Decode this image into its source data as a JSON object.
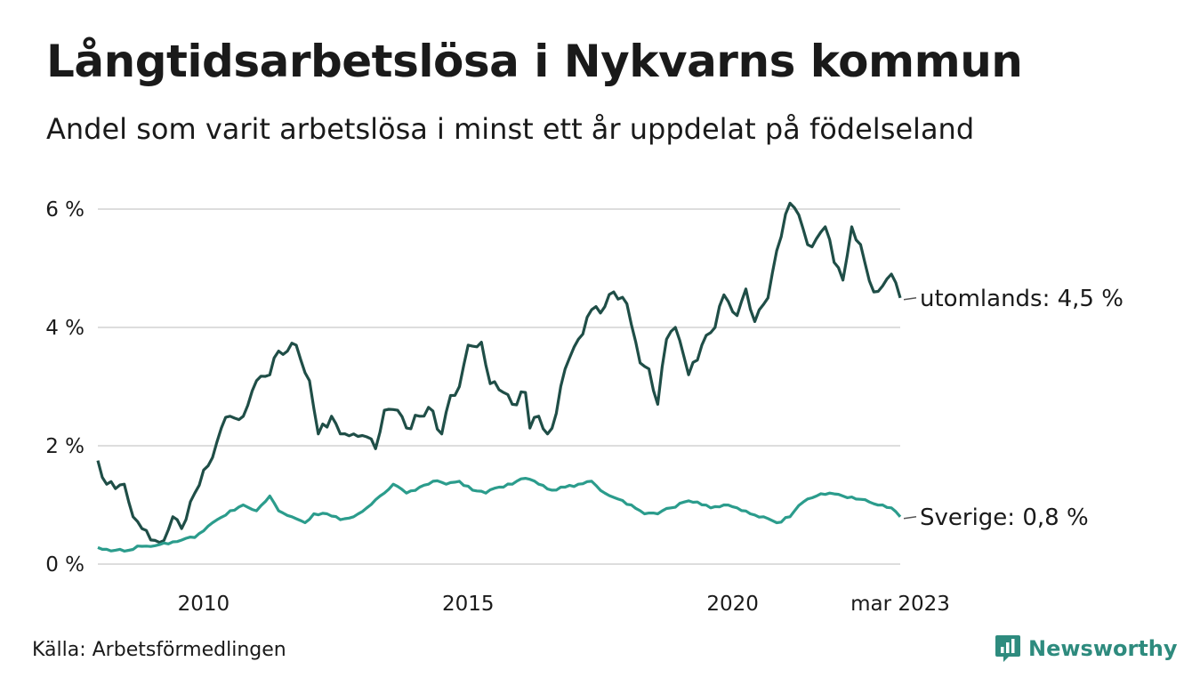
{
  "title": "Långtidsarbetslösa i Nykvarns kommun",
  "subtitle": "Andel som varit arbetslösa i minst ett år uppdelat på födelseland",
  "source": "Källa: Arbetsförmedlingen",
  "brand": {
    "name": "Newsworthy",
    "icon": "newsworthy-logo-icon"
  },
  "colors": {
    "utomlands": "#1f4e47",
    "sverige": "#2b9c8c",
    "grid": "#dddddd",
    "text": "#1a1a1a"
  },
  "chart_data": {
    "type": "line",
    "title": "Långtidsarbetslösa i Nykvarns kommun",
    "subtitle": "Andel som varit arbetslösa i minst ett år uppdelat på födelseland",
    "x_start": "2008-01",
    "x_end": "2023-03",
    "x_ticks": [
      {
        "label": "2010",
        "x": "2010-01"
      },
      {
        "label": "2015",
        "x": "2015-01"
      },
      {
        "label": "2020",
        "x": "2020-01"
      },
      {
        "label": "mar 2023",
        "x": "2023-03"
      }
    ],
    "y_ticks": [
      {
        "label": "0 %",
        "value": 0
      },
      {
        "label": "2 %",
        "value": 2
      },
      {
        "label": "4 %",
        "value": 4
      },
      {
        "label": "6 %",
        "value": 6
      }
    ],
    "ylim": [
      0,
      6.4
    ],
    "grid": true,
    "series": [
      {
        "name": "utomlands",
        "end_label": "utomlands: 4,5 %",
        "last_value": 4.5,
        "keypoints": [
          [
            "2008-01",
            1.75
          ],
          [
            "2008-03",
            1.35
          ],
          [
            "2008-07",
            1.35
          ],
          [
            "2008-09",
            0.8
          ],
          [
            "2008-11",
            0.6
          ],
          [
            "2009-02",
            0.4
          ],
          [
            "2009-04",
            0.4
          ],
          [
            "2009-06",
            0.8
          ],
          [
            "2009-08",
            0.6
          ],
          [
            "2009-11",
            1.2
          ],
          [
            "2010-03",
            1.8
          ],
          [
            "2010-05",
            2.3
          ],
          [
            "2010-07",
            2.5
          ],
          [
            "2010-10",
            2.5
          ],
          [
            "2011-01",
            3.1
          ],
          [
            "2011-04",
            3.2
          ],
          [
            "2011-06",
            3.6
          ],
          [
            "2011-08",
            3.6
          ],
          [
            "2011-10",
            3.7
          ],
          [
            "2012-01",
            3.1
          ],
          [
            "2012-03",
            2.2
          ],
          [
            "2012-06",
            2.5
          ],
          [
            "2012-08",
            2.2
          ],
          [
            "2012-11",
            2.2
          ],
          [
            "2013-02",
            2.15
          ],
          [
            "2013-04",
            1.95
          ],
          [
            "2013-06",
            2.6
          ],
          [
            "2013-09",
            2.6
          ],
          [
            "2013-11",
            2.3
          ],
          [
            "2014-02",
            2.5
          ],
          [
            "2014-04",
            2.65
          ],
          [
            "2014-07",
            2.2
          ],
          [
            "2014-09",
            2.85
          ],
          [
            "2014-11",
            3.0
          ],
          [
            "2015-01",
            3.7
          ],
          [
            "2015-04",
            3.75
          ],
          [
            "2015-06",
            3.05
          ],
          [
            "2015-09",
            2.9
          ],
          [
            "2015-11",
            2.7
          ],
          [
            "2016-02",
            2.9
          ],
          [
            "2016-03",
            2.3
          ],
          [
            "2016-05",
            2.5
          ],
          [
            "2016-07",
            2.2
          ],
          [
            "2016-09",
            2.55
          ],
          [
            "2016-11",
            3.3
          ],
          [
            "2017-02",
            3.8
          ],
          [
            "2017-05",
            4.3
          ],
          [
            "2017-08",
            4.35
          ],
          [
            "2017-10",
            4.6
          ],
          [
            "2018-01",
            4.4
          ],
          [
            "2018-04",
            3.4
          ],
          [
            "2018-06",
            3.3
          ],
          [
            "2018-08",
            2.7
          ],
          [
            "2018-10",
            3.8
          ],
          [
            "2018-12",
            4.0
          ],
          [
            "2019-03",
            3.2
          ],
          [
            "2019-06",
            3.7
          ],
          [
            "2019-09",
            4.0
          ],
          [
            "2019-11",
            4.55
          ],
          [
            "2020-02",
            4.2
          ],
          [
            "2020-04",
            4.65
          ],
          [
            "2020-06",
            4.1
          ],
          [
            "2020-09",
            4.5
          ],
          [
            "2020-11",
            5.3
          ],
          [
            "2021-02",
            6.1
          ],
          [
            "2021-04",
            5.9
          ],
          [
            "2021-06",
            5.4
          ],
          [
            "2021-08",
            5.5
          ],
          [
            "2021-10",
            5.7
          ],
          [
            "2021-12",
            5.1
          ],
          [
            "2022-02",
            4.8
          ],
          [
            "2022-04",
            5.7
          ],
          [
            "2022-06",
            5.4
          ],
          [
            "2022-09",
            4.6
          ],
          [
            "2022-11",
            4.7
          ],
          [
            "2023-01",
            4.9
          ],
          [
            "2023-03",
            4.5
          ]
        ]
      },
      {
        "name": "Sverige",
        "end_label": "Sverige: 0,8 %",
        "last_value": 0.8,
        "keypoints": [
          [
            "2008-01",
            0.28
          ],
          [
            "2008-03",
            0.25
          ],
          [
            "2008-07",
            0.22
          ],
          [
            "2008-11",
            0.3
          ],
          [
            "2009-03",
            0.33
          ],
          [
            "2009-07",
            0.38
          ],
          [
            "2009-11",
            0.45
          ],
          [
            "2010-03",
            0.7
          ],
          [
            "2010-07",
            0.9
          ],
          [
            "2010-10",
            1.0
          ],
          [
            "2011-01",
            0.9
          ],
          [
            "2011-04",
            1.15
          ],
          [
            "2011-06",
            0.9
          ],
          [
            "2011-09",
            0.8
          ],
          [
            "2011-12",
            0.7
          ],
          [
            "2012-02",
            0.85
          ],
          [
            "2012-05",
            0.85
          ],
          [
            "2012-08",
            0.75
          ],
          [
            "2012-11",
            0.8
          ],
          [
            "2013-02",
            0.95
          ],
          [
            "2013-05",
            1.15
          ],
          [
            "2013-08",
            1.35
          ],
          [
            "2013-11",
            1.2
          ],
          [
            "2014-02",
            1.3
          ],
          [
            "2014-05",
            1.4
          ],
          [
            "2014-08",
            1.35
          ],
          [
            "2014-11",
            1.4
          ],
          [
            "2015-02",
            1.25
          ],
          [
            "2015-05",
            1.2
          ],
          [
            "2015-08",
            1.3
          ],
          [
            "2015-11",
            1.35
          ],
          [
            "2016-02",
            1.45
          ],
          [
            "2016-05",
            1.35
          ],
          [
            "2016-08",
            1.25
          ],
          [
            "2016-11",
            1.3
          ],
          [
            "2017-02",
            1.35
          ],
          [
            "2017-05",
            1.4
          ],
          [
            "2017-08",
            1.2
          ],
          [
            "2017-11",
            1.1
          ],
          [
            "2018-02",
            1.0
          ],
          [
            "2018-05",
            0.85
          ],
          [
            "2018-08",
            0.85
          ],
          [
            "2018-11",
            0.95
          ],
          [
            "2019-02",
            1.05
          ],
          [
            "2019-05",
            1.05
          ],
          [
            "2019-08",
            0.95
          ],
          [
            "2019-11",
            1.0
          ],
          [
            "2020-02",
            0.95
          ],
          [
            "2020-05",
            0.85
          ],
          [
            "2020-08",
            0.8
          ],
          [
            "2020-11",
            0.7
          ],
          [
            "2021-02",
            0.8
          ],
          [
            "2021-05",
            1.05
          ],
          [
            "2021-08",
            1.15
          ],
          [
            "2021-11",
            1.2
          ],
          [
            "2022-02",
            1.15
          ],
          [
            "2022-05",
            1.1
          ],
          [
            "2022-08",
            1.05
          ],
          [
            "2022-11",
            1.0
          ],
          [
            "2023-01",
            0.95
          ],
          [
            "2023-03",
            0.8
          ]
        ]
      }
    ]
  }
}
